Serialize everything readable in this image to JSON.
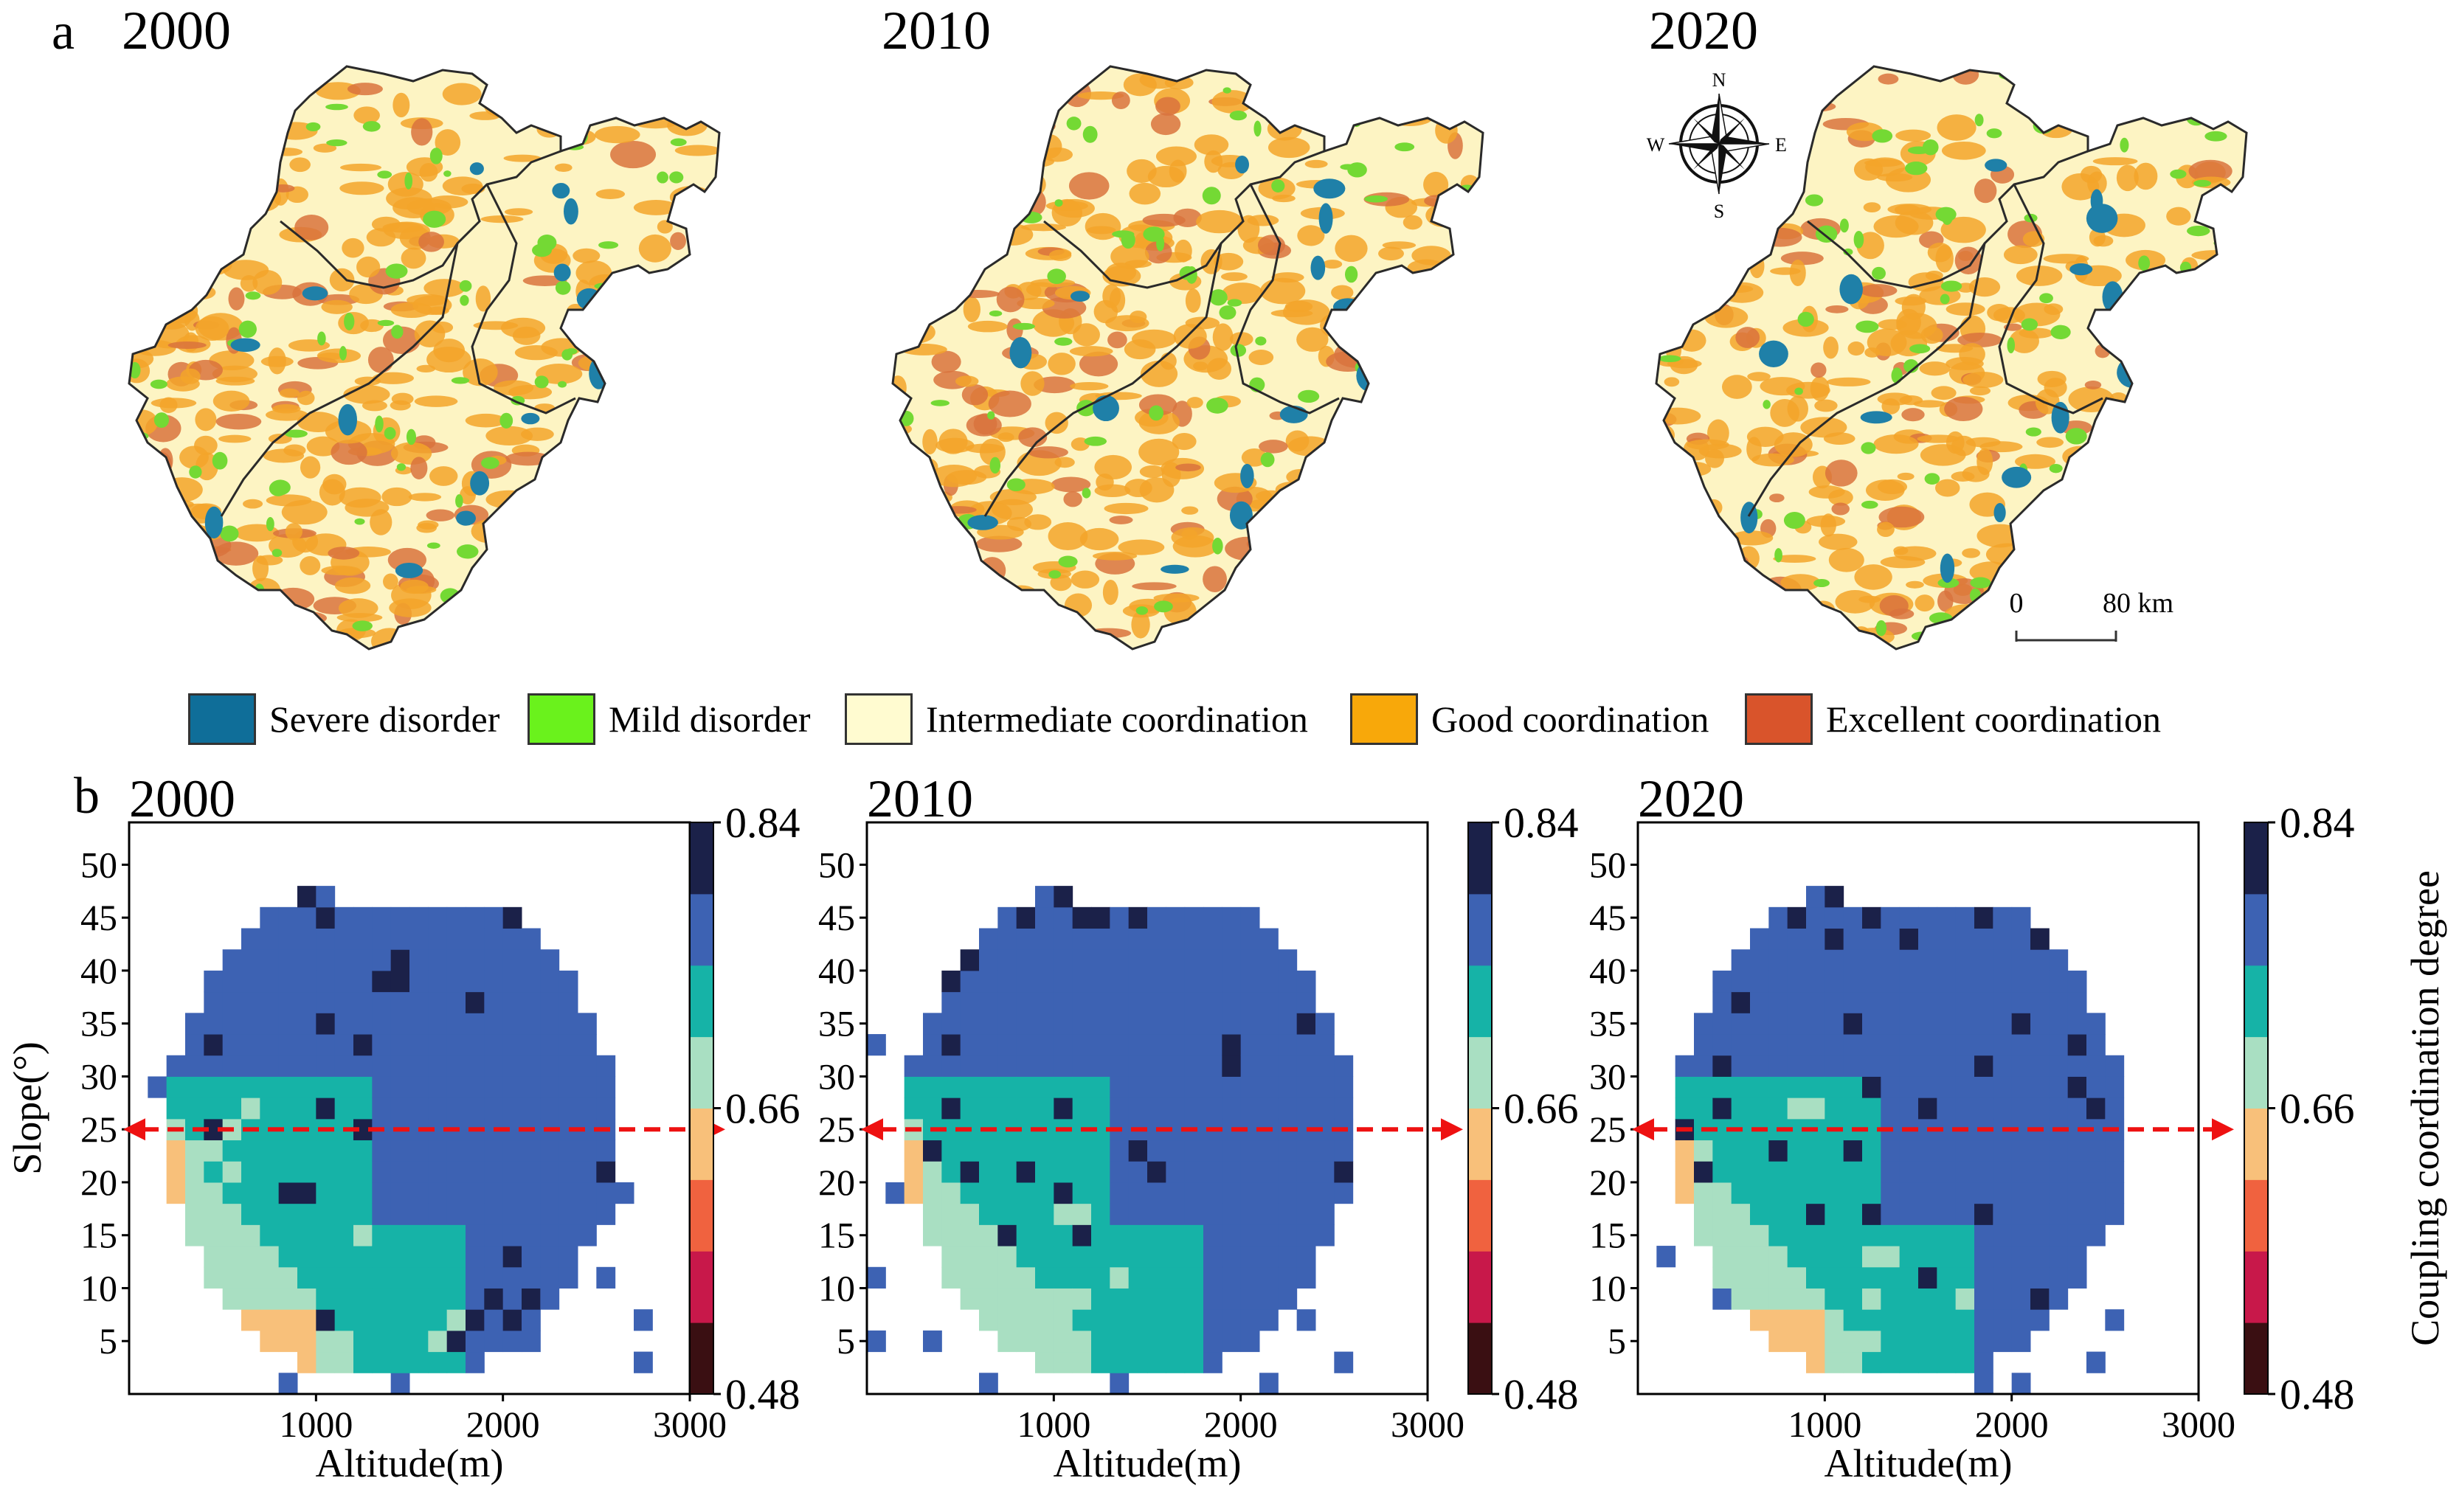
{
  "panel_a": {
    "letter": "a",
    "years": [
      "2000",
      "2010",
      "2020"
    ],
    "compass": {
      "n": "N",
      "s": "S",
      "e": "E",
      "w": "W"
    },
    "scale": {
      "zero": "0",
      "label": "80 km"
    },
    "legend": [
      {
        "label": "Severe disorder",
        "color": "#0f6e99"
      },
      {
        "label": "Mild disorder",
        "color": "#6af21c"
      },
      {
        "label": "Intermediate coordination",
        "color": "#fffbd0"
      },
      {
        "label": "Good coordination",
        "color": "#f8a80a"
      },
      {
        "label": "Excellent coordination",
        "color": "#d9542b"
      }
    ],
    "map_colors": {
      "base": "#fdf4c3",
      "orange": "#f3a52a",
      "red": "#d9733d",
      "green": "#74d934",
      "blue": "#1f80a8",
      "border": "#2a2a2a"
    }
  },
  "panel_b": {
    "letter": "b",
    "colorbar_title": "Coupling coordination degree",
    "colorbar_ticks": [
      "0.84",
      "0.66",
      "0.48"
    ],
    "colorbar_colors": [
      "#3a0f12",
      "#c8184a",
      "#f0623f",
      "#f8c07a",
      "#a9dfc2",
      "#16b3a7",
      "#3d62b3",
      "#1b2149"
    ]
  },
  "chart_data": [
    {
      "type": "heatmap",
      "title": "2000",
      "xlabel": "Altitude(m)",
      "ylabel": "Slope(°)",
      "xlim": [
        0,
        3000
      ],
      "ylim": [
        0,
        54
      ],
      "x_ticks": [
        "1000",
        "2000",
        "3000"
      ],
      "y_ticks": [
        "5",
        "10",
        "15",
        "20",
        "25",
        "30",
        "35",
        "40",
        "45",
        "50"
      ],
      "reference_line_slope": 25,
      "color_range": [
        0.48,
        0.84
      ]
    },
    {
      "type": "heatmap",
      "title": "2010",
      "xlabel": "Altitude(m)",
      "ylabel": "Slope(°)",
      "xlim": [
        0,
        3000
      ],
      "ylim": [
        0,
        54
      ],
      "x_ticks": [
        "1000",
        "2000",
        "3000"
      ],
      "y_ticks": [
        "5",
        "10",
        "15",
        "20",
        "25",
        "30",
        "35",
        "40",
        "45",
        "50"
      ],
      "reference_line_slope": 25,
      "color_range": [
        0.48,
        0.84
      ]
    },
    {
      "type": "heatmap",
      "title": "2020",
      "xlabel": "Altitude(m)",
      "ylabel": "Slope(°)",
      "xlim": [
        0,
        3000
      ],
      "ylim": [
        0,
        54
      ],
      "x_ticks": [
        "1000",
        "2000",
        "3000"
      ],
      "y_ticks": [
        "5",
        "10",
        "15",
        "20",
        "25",
        "30",
        "35",
        "40",
        "45",
        "50"
      ],
      "reference_line_slope": 25,
      "color_range": [
        0.48,
        0.84
      ]
    }
  ]
}
